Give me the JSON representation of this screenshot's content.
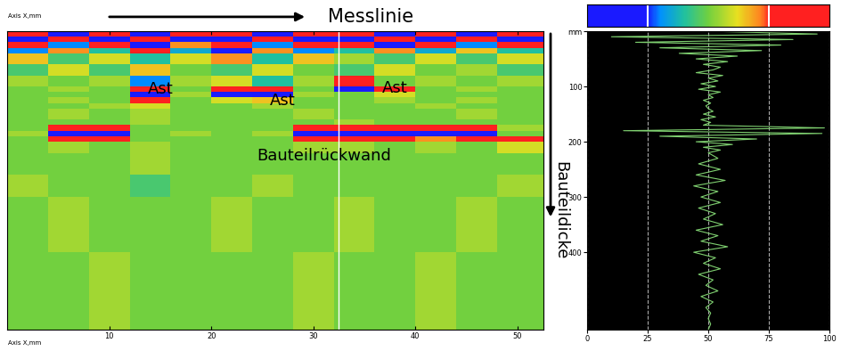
{
  "chart_data": [
    {
      "type": "heatmap",
      "x_label": "Axis X,mm",
      "x_arrow_label": "Messlinie",
      "y_arrow_label": "Bauteildicke",
      "annotations": [
        "Ast",
        "Ast",
        "Ast",
        "Bauteilrückwand"
      ],
      "xlim": [
        0,
        52.5
      ],
      "ylim": [
        540,
        0
      ],
      "xticks": [
        10,
        20,
        30,
        40,
        50
      ],
      "tick_labels": "x",
      "cursor_x": 32.5,
      "x_edges": [
        0,
        4,
        8,
        12,
        16,
        20,
        24,
        28,
        32,
        36,
        40,
        44,
        48,
        52.5
      ],
      "y_edges": [
        0,
        10,
        20,
        30,
        40,
        60,
        80,
        100,
        110,
        120,
        130,
        140,
        160,
        170,
        180,
        190,
        200,
        220,
        260,
        300,
        400,
        540
      ],
      "cells": [
        [
          85,
          20,
          90,
          15,
          85,
          80,
          20,
          90,
          85,
          15,
          90,
          20,
          85
        ],
        [
          20,
          85,
          15,
          80,
          25,
          15,
          85,
          20,
          10,
          80,
          20,
          85,
          25
        ],
        [
          80,
          30,
          75,
          20,
          70,
          85,
          30,
          80,
          75,
          25,
          80,
          30,
          75
        ],
        [
          30,
          70,
          40,
          75,
          35,
          25,
          70,
          30,
          40,
          70,
          35,
          65,
          40
        ],
        [
          65,
          45,
          60,
          40,
          60,
          70,
          40,
          65,
          55,
          45,
          60,
          45,
          60
        ],
        [
          45,
          60,
          45,
          65,
          50,
          45,
          60,
          50,
          45,
          60,
          50,
          55,
          45
        ],
        [
          55,
          50,
          55,
          30,
          55,
          60,
          40,
          55,
          80,
          50,
          55,
          50,
          55
        ],
        [
          50,
          55,
          50,
          85,
          50,
          75,
          80,
          50,
          20,
          85,
          50,
          55,
          50
        ],
        [
          50,
          50,
          50,
          20,
          55,
          25,
          20,
          55,
          50,
          60,
          50,
          50,
          50
        ],
        [
          50,
          55,
          50,
          75,
          50,
          60,
          65,
          50,
          50,
          55,
          50,
          55,
          50
        ],
        [
          50,
          50,
          55,
          60,
          50,
          50,
          55,
          50,
          50,
          50,
          55,
          50,
          50
        ],
        [
          50,
          55,
          50,
          55,
          50,
          50,
          50,
          55,
          50,
          50,
          50,
          55,
          50
        ],
        [
          50,
          50,
          50,
          55,
          50,
          50,
          50,
          50,
          55,
          50,
          50,
          50,
          50
        ],
        [
          50,
          85,
          80,
          50,
          50,
          50,
          50,
          80,
          85,
          85,
          75,
          80,
          55
        ],
        [
          55,
          15,
          20,
          50,
          55,
          50,
          55,
          20,
          15,
          15,
          25,
          20,
          50
        ],
        [
          50,
          80,
          75,
          50,
          50,
          50,
          50,
          85,
          80,
          80,
          70,
          85,
          80
        ],
        [
          50,
          55,
          50,
          55,
          50,
          50,
          50,
          55,
          55,
          50,
          55,
          50,
          60
        ],
        [
          50,
          50,
          50,
          55,
          50,
          50,
          50,
          50,
          50,
          50,
          50,
          50,
          50
        ],
        [
          55,
          50,
          50,
          45,
          50,
          50,
          55,
          50,
          50,
          50,
          50,
          50,
          55
        ],
        [
          50,
          55,
          50,
          50,
          50,
          55,
          50,
          50,
          55,
          50,
          50,
          55,
          50
        ],
        [
          50,
          50,
          55,
          50,
          50,
          50,
          50,
          55,
          50,
          50,
          55,
          50,
          50
        ]
      ],
      "colorbar": {
        "range": [
          0,
          100
        ],
        "ticks": [
          25,
          75
        ]
      }
    },
    {
      "type": "line",
      "color": "#7fd070",
      "grid": true,
      "xlim": [
        0,
        100
      ],
      "xticks": [
        0,
        25,
        50,
        75,
        100
      ],
      "ylim": [
        540,
        0
      ],
      "yticks": [
        {
          "value": 0,
          "label": "mm"
        },
        100,
        200,
        300,
        400
      ],
      "y": [
        0,
        5,
        10,
        15,
        20,
        25,
        30,
        35,
        40,
        45,
        50,
        55,
        60,
        65,
        70,
        75,
        80,
        85,
        90,
        95,
        100,
        105,
        110,
        115,
        120,
        125,
        130,
        135,
        140,
        145,
        150,
        155,
        160,
        165,
        170,
        175,
        180,
        185,
        190,
        195,
        200,
        205,
        210,
        215,
        220,
        230,
        240,
        250,
        260,
        270,
        280,
        290,
        300,
        310,
        320,
        330,
        340,
        350,
        360,
        370,
        380,
        390,
        400,
        410,
        420,
        430,
        440,
        450,
        460,
        470,
        480,
        490,
        500,
        510,
        520,
        530,
        540
      ],
      "values": [
        50,
        95,
        10,
        85,
        20,
        80,
        30,
        72,
        38,
        62,
        45,
        58,
        48,
        55,
        52,
        45,
        56,
        50,
        54,
        47,
        53,
        46,
        55,
        50,
        52,
        48,
        51,
        49,
        50,
        52,
        48,
        53,
        47,
        51,
        48,
        98,
        15,
        97,
        30,
        70,
        45,
        60,
        48,
        55,
        50,
        54,
        46,
        55,
        45,
        57,
        44,
        54,
        47,
        55,
        46,
        53,
        48,
        56,
        45,
        54,
        47,
        58,
        44,
        53,
        48,
        55,
        46,
        52,
        49,
        54,
        47,
        52,
        49,
        51,
        50,
        51,
        50
      ]
    }
  ]
}
